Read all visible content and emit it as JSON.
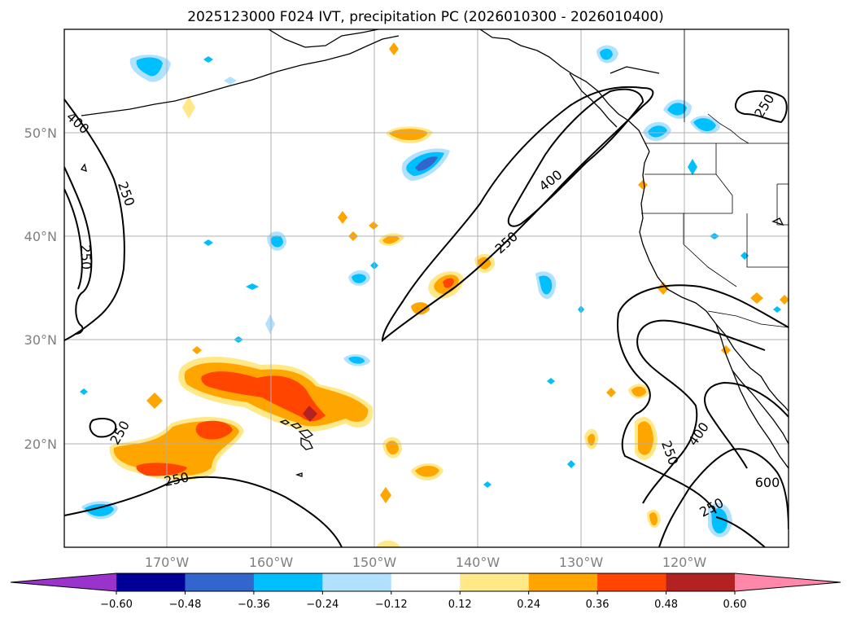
{
  "title": "2025123000 F024 IVT, precipitation PC (2026010300 - 2026010400)",
  "lat_labels": [
    "50°N",
    "40°N",
    "30°N",
    "20°N"
  ],
  "lon_labels": [
    "170°W",
    "160°W",
    "150°W",
    "140°W",
    "130°W",
    "120°W"
  ],
  "colorbar": {
    "ticks": [
      "−0.60",
      "−0.48",
      "−0.36",
      "−0.24",
      "−0.12",
      "0.12",
      "0.24",
      "0.36",
      "0.48",
      "0.60"
    ],
    "colors": {
      "under": "#9933cc",
      "bins": [
        "#000099",
        "#3366cc",
        "#00bfff",
        "#b0e2ff",
        "#ffffff",
        "#ffe888",
        "#ffa500",
        "#ff4500",
        "#b22222"
      ],
      "over": "#ff88aa"
    }
  },
  "ivt_contour_labels": [
    "400",
    "250",
    "250",
    "250",
    "400",
    "250",
    "250",
    "250",
    "400",
    "250",
    "600",
    "250"
  ],
  "colors": {
    "neg_light": "#b0e2ff",
    "neg_mid": "#00bfff",
    "neg_strong": "#3366cc",
    "pos_light": "#ffe888",
    "pos_mid": "#ffa500",
    "pos_strong": "#ff4500",
    "pos_max": "#b22222"
  }
}
